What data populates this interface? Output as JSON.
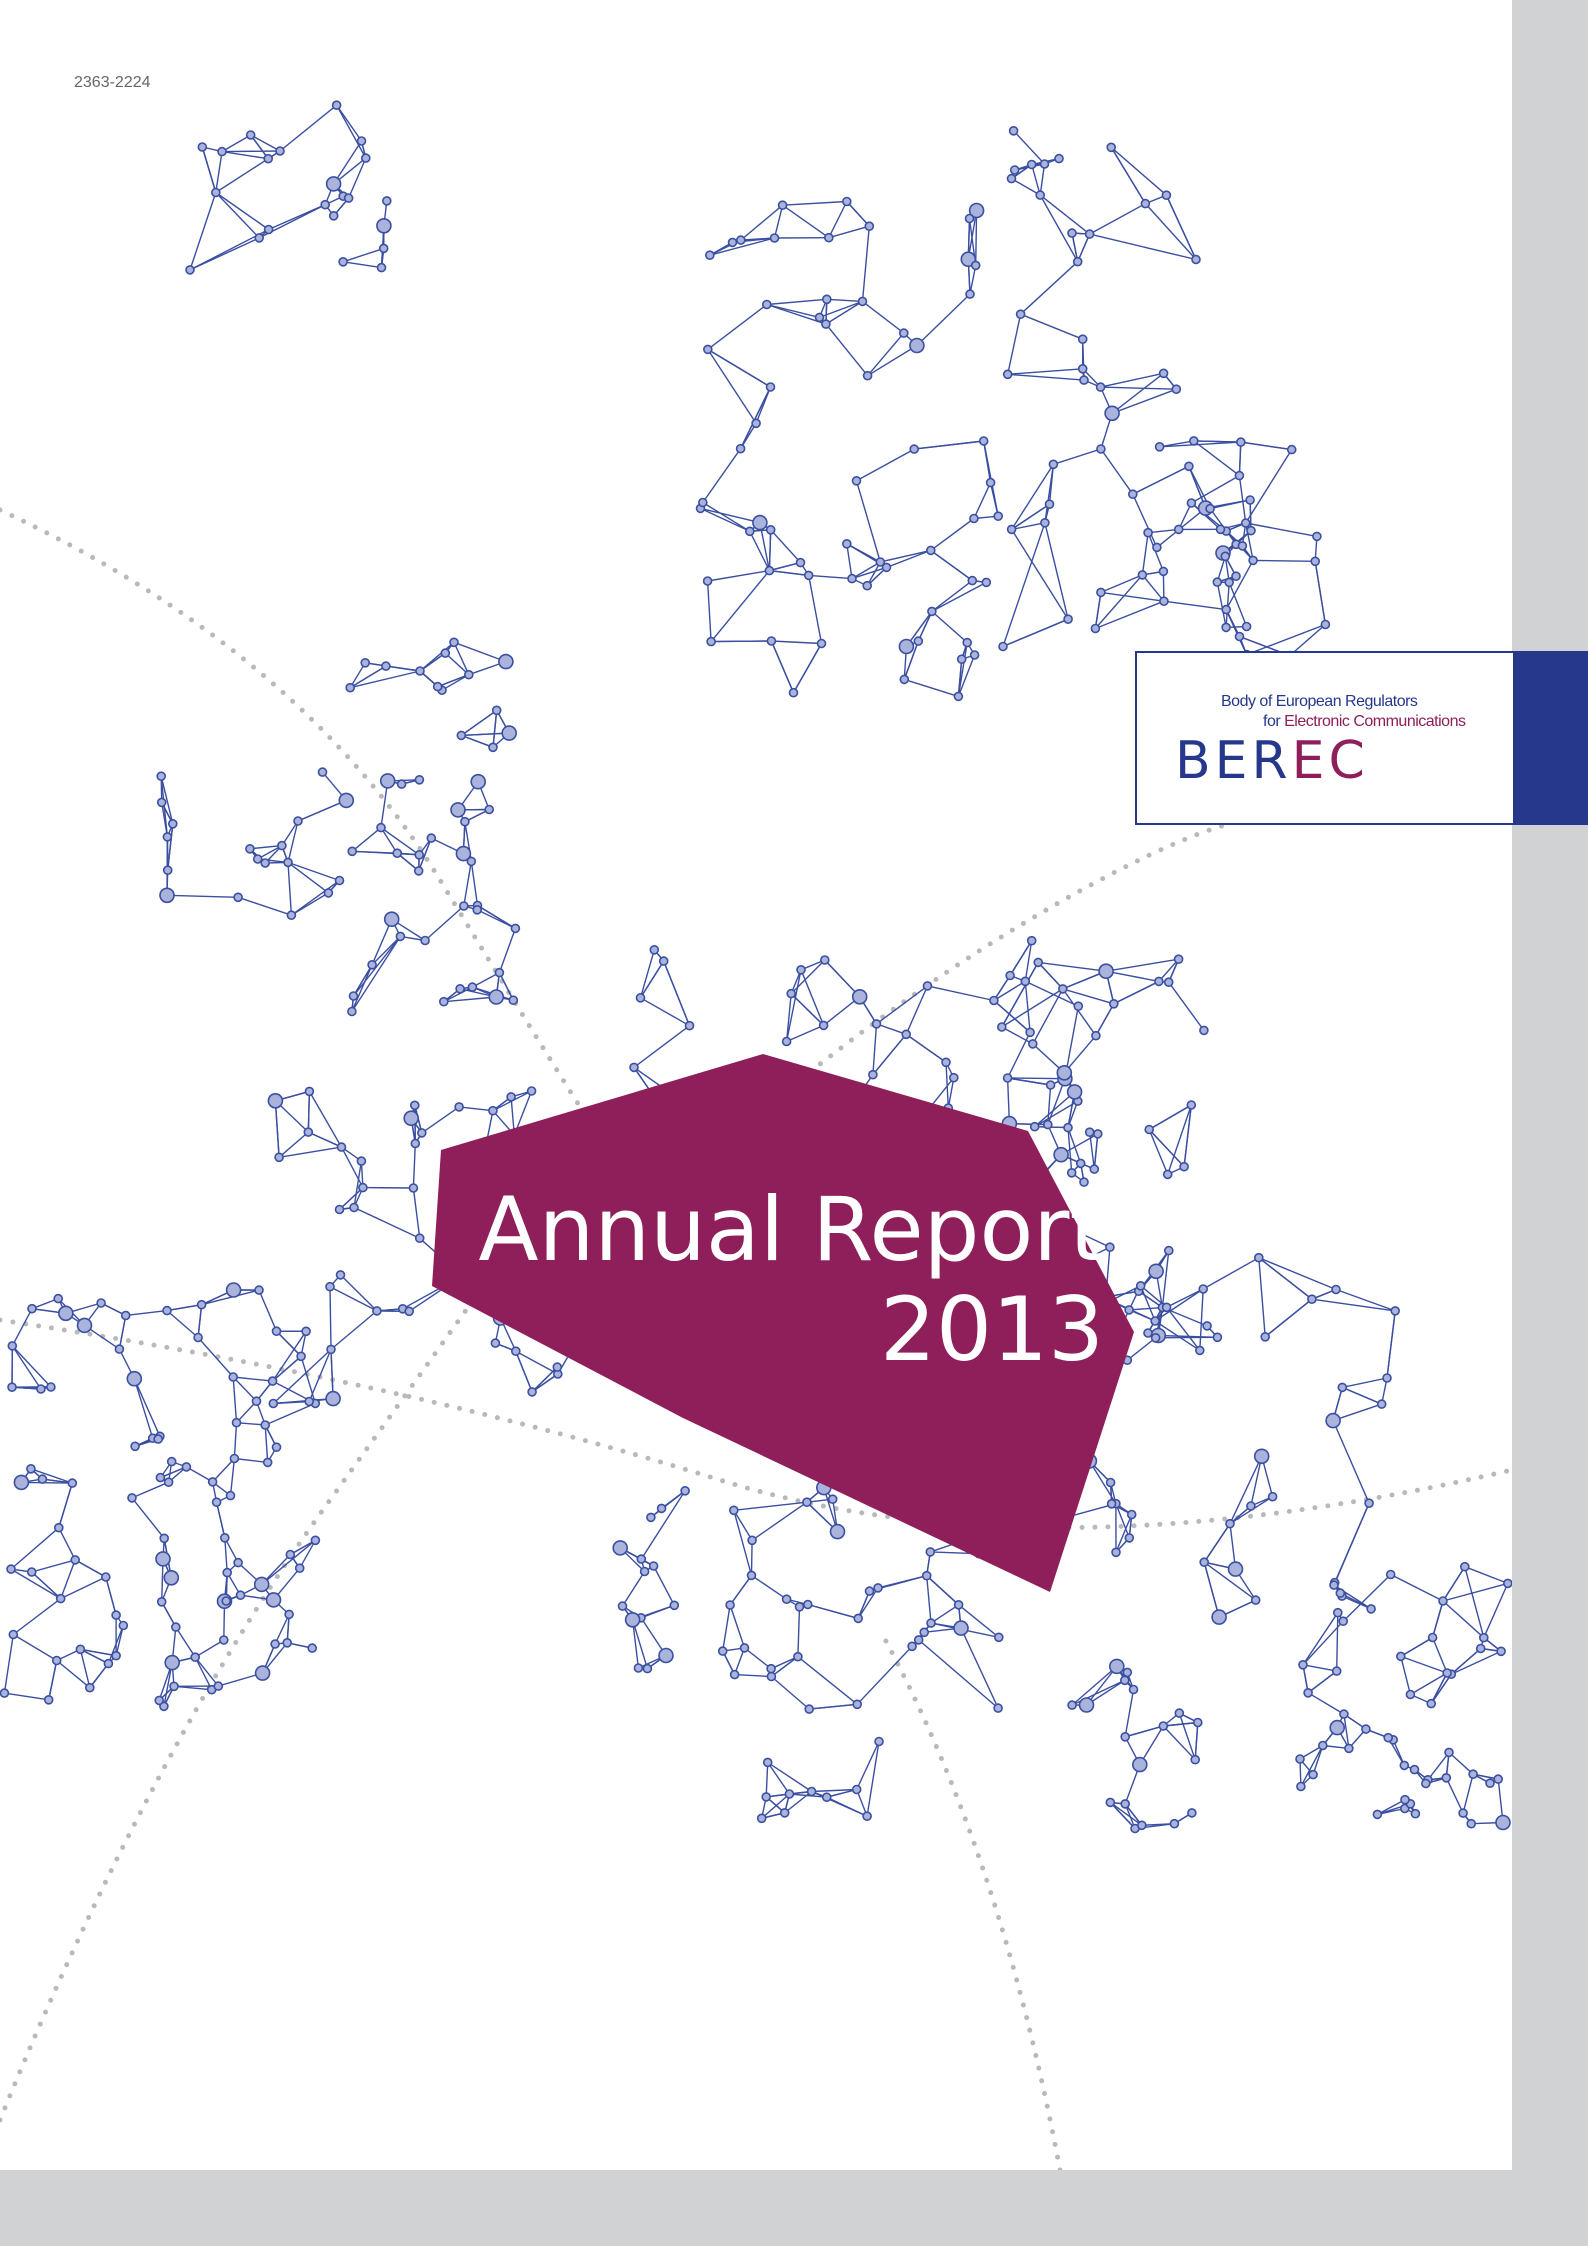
{
  "document_code": "2363-2224",
  "logo": {
    "line1": "Body of European Regulators",
    "line2_prefix": "for",
    "line2_highlight": "Electronic Communications",
    "acronym_part1": "BER",
    "acronym_part2": "EC"
  },
  "title": {
    "line1": "Annual Report",
    "line2": "2013"
  }
}
